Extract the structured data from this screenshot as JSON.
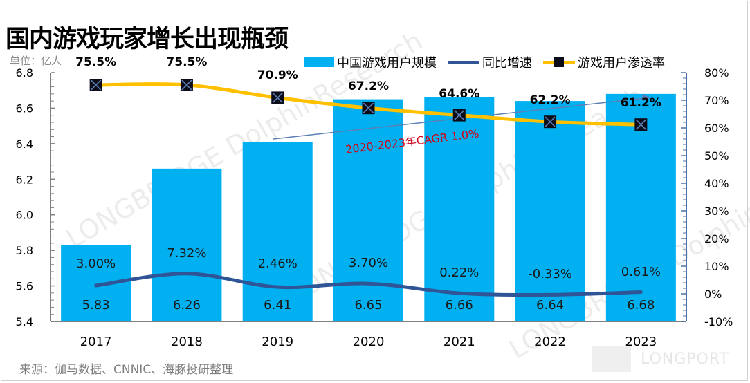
{
  "title": "国内游戏玩家增长出现瓶颈",
  "unit_label": "单位：亿人",
  "source": "来源：伽马数据、CNNIC、海豚投研整理",
  "watermark": "LONGBRIDGE DolphinResearch",
  "logo": "LONGPORT",
  "legend": [
    {
      "label": "中国游戏用户规模",
      "kind": "bar"
    },
    {
      "label": "同比增速",
      "kind": "line"
    },
    {
      "label": "游戏用户渗透率",
      "kind": "line-marker"
    }
  ],
  "colors": {
    "bar": "#00b0f0",
    "growth_line": "#2f5597",
    "penetration_line": "#ffc000",
    "marker": "#0d0d1a",
    "marker_x": "#5b7fb5",
    "annotation": "#d0021b",
    "trend_arrow": "#5b7fb5",
    "axis": "#808080",
    "right_axis": "#4a72a8"
  },
  "chart_data": {
    "type": "bar",
    "title": "国内游戏玩家增长出现瓶颈",
    "categories": [
      "2017",
      "2018",
      "2019",
      "2020",
      "2021",
      "2022",
      "2023"
    ],
    "series": [
      {
        "name": "中国游戏用户规模",
        "type": "bar",
        "axis": "left",
        "values": [
          5.83,
          6.26,
          6.41,
          6.65,
          6.66,
          6.64,
          6.68
        ],
        "labels": [
          "5.83",
          "6.26",
          "6.41",
          "6.65",
          "6.66",
          "6.64",
          "6.68"
        ]
      },
      {
        "name": "同比增速",
        "type": "line",
        "axis": "right",
        "values": [
          3.0,
          7.32,
          2.46,
          3.7,
          0.22,
          -0.33,
          0.61
        ],
        "labels": [
          "3.00%",
          "7.32%",
          "2.46%",
          "3.70%",
          "0.22%",
          "-0.33%",
          "0.61%"
        ]
      },
      {
        "name": "游戏用户渗透率",
        "type": "line",
        "axis": "right",
        "values": [
          75.5,
          75.5,
          70.9,
          67.2,
          64.6,
          62.2,
          61.2
        ],
        "labels": [
          "75.5%",
          "75.5%",
          "70.9%",
          "67.2%",
          "64.6%",
          "62.2%",
          "61.2%"
        ]
      }
    ],
    "left_axis": {
      "ylim": [
        5.4,
        6.8
      ],
      "ticks": [
        "5.4",
        "5.6",
        "5.8",
        "6.0",
        "6.2",
        "6.4",
        "6.6",
        "6.8"
      ],
      "label": "单位：亿人"
    },
    "right_axis": {
      "ylim": [
        -10,
        80
      ],
      "ticks": [
        "-10%",
        "0%",
        "10%",
        "20%",
        "30%",
        "40%",
        "50%",
        "60%",
        "70%",
        "80%"
      ]
    },
    "annotation": {
      "text": "2020-2023年CAGR 1.0%",
      "from_category": "2019",
      "to_category": "2023"
    },
    "legend_position": "top-right",
    "grid": false
  }
}
